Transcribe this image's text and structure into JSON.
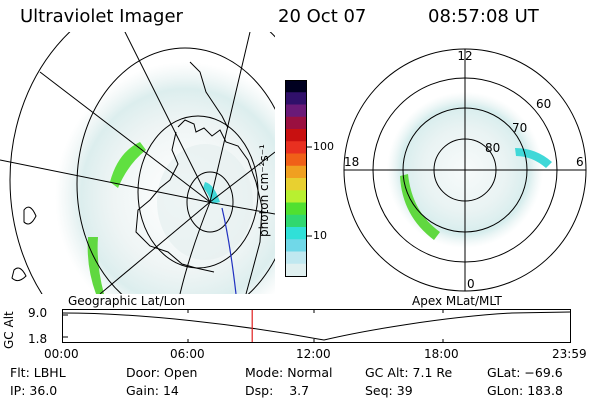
{
  "header": {
    "instrument": "Ultraviolet Imager",
    "date": "20 Oct 07",
    "time": "08:57:08 UT"
  },
  "colorbar": {
    "unit_label": "photon cm⁻²s⁻¹",
    "ticks": [
      "100",
      "10"
    ],
    "colors": [
      "#000020",
      "#30106a",
      "#6a1a78",
      "#9a1040",
      "#c81010",
      "#e83020",
      "#f06018",
      "#f0a020",
      "#e8d030",
      "#b8f030",
      "#50e030",
      "#30d870",
      "#30e0d8",
      "#70d8e8",
      "#c0e8f0",
      "#e0f0f0"
    ]
  },
  "map_left": {
    "label": "Geographic Lat/Lon"
  },
  "map_right": {
    "label": "Apex MLat/MLT",
    "mlt_labels": {
      "top": "12",
      "left": "18",
      "right": "6",
      "bottom": "0"
    },
    "mlat_labels": [
      "60",
      "70",
      "80"
    ]
  },
  "altitude_plot": {
    "ylabel": "GC Alt",
    "yticks": [
      "9.0",
      "1.8"
    ],
    "xticks": [
      "00:00",
      "06:00",
      "12:00",
      "18:00",
      "23:59"
    ],
    "current_time_marker": "08:57",
    "marker_color": "#e02020"
  },
  "status": {
    "flt_label": "Flt:",
    "flt_value": "LBHL",
    "ip_label": "IP:",
    "ip_value": "36.0",
    "door_label": "Door:",
    "door_value": "Open",
    "gain_label": "Gain:",
    "gain_value": "14",
    "mode_label": "Mode:",
    "mode_value": "Normal",
    "dsp_label": "Dsp:",
    "dsp_value": "3.7",
    "gcalt_label": "GC Alt:",
    "gcalt_value": "7.1 Re",
    "seq_label": "Seq:",
    "seq_value": "39",
    "glat_label": "GLat:",
    "glat_value": "−69.6",
    "glon_label": "GLon:",
    "glon_value": "183.8"
  }
}
